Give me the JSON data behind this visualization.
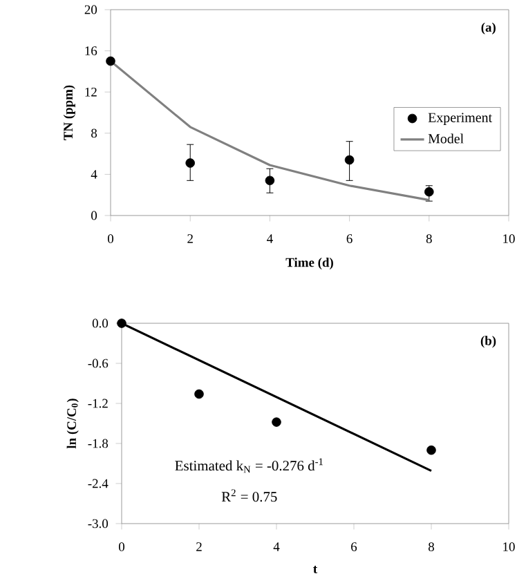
{
  "chart_data": [
    {
      "type": "scatter",
      "xlabel": "Time (d)",
      "ylabel": "TN (ppm)",
      "xlim": [
        0,
        10
      ],
      "ylim": [
        0,
        20
      ],
      "xticks": [
        0,
        2,
        4,
        6,
        8,
        10
      ],
      "yticks": [
        0,
        4,
        8,
        12,
        16,
        20
      ],
      "legend": "right",
      "annotations": [
        "(a)"
      ],
      "series": [
        {
          "name": "Experiment",
          "marker": "circle",
          "color": "#000000",
          "x": [
            0,
            2,
            4,
            6,
            8
          ],
          "values": [
            15.0,
            5.1,
            3.4,
            5.4,
            2.3
          ],
          "errors": [
            null,
            [
              3.4,
              6.9
            ],
            [
              2.2,
              4.55
            ],
            [
              3.4,
              7.2
            ],
            [
              1.4,
              2.9
            ]
          ]
        },
        {
          "name": "Model",
          "type": "line",
          "marker": "none",
          "color": "#808080",
          "x": [
            0,
            2,
            4,
            6,
            8
          ],
          "values": [
            15.0,
            8.6,
            4.9,
            2.9,
            1.5
          ]
        }
      ]
    },
    {
      "type": "scatter",
      "xlabel": "t",
      "ylabel": "ln (C/C$_{0}$)",
      "xlim": [
        0,
        10
      ],
      "ylim": [
        -3,
        0
      ],
      "xticks": [
        0,
        2,
        4,
        6,
        8,
        10
      ],
      "yticks": [
        {
          "value": -3,
          "label": "-3.0"
        },
        -2.4,
        -1.8,
        -1.2,
        -0.6,
        {
          "value": 0,
          "label": "0.0"
        }
      ],
      "annotations": [
        "(b)",
        "Estimated k$_{N}$ = -0.276 d$^{-1}$",
        "R$^{2}$ = 0.75"
      ],
      "series": [
        {
          "marker": "circle",
          "color": "#000000",
          "x": [
            0,
            2,
            4,
            8
          ],
          "values": [
            0.0,
            -1.06,
            -1.48,
            -1.9
          ]
        },
        {
          "type": "line",
          "marker": "none",
          "color": "#000000",
          "x": [
            0,
            8
          ],
          "values": [
            0.0,
            -2.21
          ]
        }
      ]
    }
  ]
}
